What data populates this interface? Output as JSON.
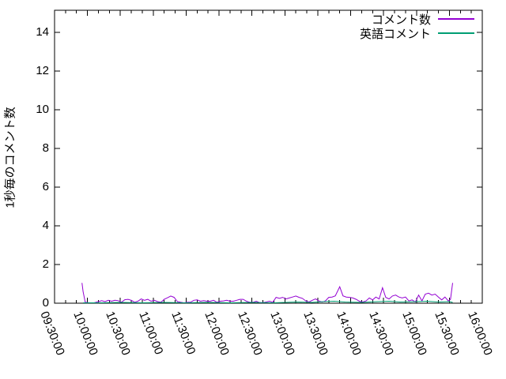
{
  "chart_data": {
    "type": "line",
    "title": "",
    "ylabel": "1秒毎のコメント数",
    "xlabel": "",
    "ylim": [
      0,
      15.14
    ],
    "yticks": [
      0,
      2,
      4,
      6,
      8,
      10,
      12,
      14
    ],
    "xticks": [
      "09:30:00",
      "10:00:00",
      "10:30:00",
      "11:00:00",
      "11:30:00",
      "12:00:00",
      "12:30:00",
      "13:00:00",
      "13:30:00",
      "14:00:00",
      "14:30:00",
      "15:00:00",
      "15:30:00",
      "16:00:00"
    ],
    "x_minor_tick_minutes": 10,
    "grid": false,
    "legend_position": "top-right-inside",
    "axis_color": "#000000",
    "background_color": "#ffffff",
    "series": [
      {
        "name": "コメント数",
        "color": "#9400d3",
        "points": [
          [
            "09:55",
            1.05
          ],
          [
            "09:56",
            0.6
          ],
          [
            "09:58",
            0.05
          ],
          [
            "10:02",
            0.02
          ],
          [
            "10:06",
            0.02
          ],
          [
            "10:10",
            0.08
          ],
          [
            "10:13",
            0.13
          ],
          [
            "10:16",
            0.08
          ],
          [
            "10:19",
            0.15
          ],
          [
            "10:22",
            0.1
          ],
          [
            "10:25",
            0.15
          ],
          [
            "10:28",
            0.13
          ],
          [
            "10:31",
            0.05
          ],
          [
            "10:34",
            0.18
          ],
          [
            "10:37",
            0.2
          ],
          [
            "10:40",
            0.15
          ],
          [
            "10:43",
            0.05
          ],
          [
            "10:46",
            0.1
          ],
          [
            "10:49",
            0.22
          ],
          [
            "10:52",
            0.15
          ],
          [
            "10:55",
            0.2
          ],
          [
            "10:58",
            0.1
          ],
          [
            "11:01",
            0.15
          ],
          [
            "11:04",
            0.08
          ],
          [
            "11:07",
            0.05
          ],
          [
            "11:10",
            0.2
          ],
          [
            "11:13",
            0.28
          ],
          [
            "11:16",
            0.37
          ],
          [
            "11:19",
            0.3
          ],
          [
            "11:22",
            0.08
          ],
          [
            "11:25",
            0.05
          ],
          [
            "11:28",
            0.02
          ],
          [
            "11:31",
            0.05
          ],
          [
            "11:34",
            0.05
          ],
          [
            "11:37",
            0.15
          ],
          [
            "11:40",
            0.17
          ],
          [
            "11:43",
            0.1
          ],
          [
            "11:46",
            0.13
          ],
          [
            "11:49",
            0.1
          ],
          [
            "11:52",
            0.1
          ],
          [
            "11:55",
            0.15
          ],
          [
            "11:58",
            0.05
          ],
          [
            "12:01",
            0.1
          ],
          [
            "12:04",
            0.12
          ],
          [
            "12:07",
            0.15
          ],
          [
            "12:10",
            0.1
          ],
          [
            "12:13",
            0.1
          ],
          [
            "12:16",
            0.15
          ],
          [
            "12:19",
            0.2
          ],
          [
            "12:22",
            0.2
          ],
          [
            "12:25",
            0.1
          ],
          [
            "12:28",
            0.05
          ],
          [
            "12:31",
            0.05
          ],
          [
            "12:34",
            0.1
          ],
          [
            "12:37",
            0.03
          ],
          [
            "12:40",
            0.03
          ],
          [
            "12:43",
            0.06
          ],
          [
            "12:46",
            0.1
          ],
          [
            "12:49",
            0.05
          ],
          [
            "12:52",
            0.3
          ],
          [
            "12:55",
            0.25
          ],
          [
            "12:58",
            0.3
          ],
          [
            "13:01",
            0.22
          ],
          [
            "13:04",
            0.27
          ],
          [
            "13:07",
            0.32
          ],
          [
            "13:10",
            0.37
          ],
          [
            "13:13",
            0.3
          ],
          [
            "13:16",
            0.25
          ],
          [
            "13:19",
            0.12
          ],
          [
            "13:22",
            0.06
          ],
          [
            "13:25",
            0.15
          ],
          [
            "13:28",
            0.22
          ],
          [
            "13:31",
            0.12
          ],
          [
            "13:34",
            0.06
          ],
          [
            "13:37",
            0.12
          ],
          [
            "13:40",
            0.3
          ],
          [
            "13:43",
            0.32
          ],
          [
            "13:46",
            0.38
          ],
          [
            "13:50",
            0.85
          ],
          [
            "13:53",
            0.38
          ],
          [
            "13:56",
            0.32
          ],
          [
            "13:59",
            0.3
          ],
          [
            "14:02",
            0.27
          ],
          [
            "14:05",
            0.2
          ],
          [
            "14:08",
            0.1
          ],
          [
            "14:11",
            0.06
          ],
          [
            "14:14",
            0.12
          ],
          [
            "14:17",
            0.27
          ],
          [
            "14:20",
            0.17
          ],
          [
            "14:23",
            0.32
          ],
          [
            "14:26",
            0.22
          ],
          [
            "14:29",
            0.8
          ],
          [
            "14:32",
            0.3
          ],
          [
            "14:35",
            0.22
          ],
          [
            "14:38",
            0.37
          ],
          [
            "14:41",
            0.42
          ],
          [
            "14:44",
            0.32
          ],
          [
            "14:47",
            0.27
          ],
          [
            "14:50",
            0.32
          ],
          [
            "14:53",
            0.12
          ],
          [
            "14:56",
            0.17
          ],
          [
            "14:59",
            0.06
          ],
          [
            "15:02",
            0.42
          ],
          [
            "15:05",
            0.12
          ],
          [
            "15:08",
            0.47
          ],
          [
            "15:11",
            0.52
          ],
          [
            "15:14",
            0.42
          ],
          [
            "15:17",
            0.47
          ],
          [
            "15:20",
            0.32
          ],
          [
            "15:23",
            0.17
          ],
          [
            "15:26",
            0.32
          ],
          [
            "15:29",
            0.12
          ],
          [
            "15:31",
            0.2
          ],
          [
            "15:33",
            1.05
          ]
        ]
      },
      {
        "name": "英語コメント",
        "color": "#009e73",
        "points": [
          [
            "09:56",
            0.02
          ],
          [
            "10:10",
            0.02
          ],
          [
            "10:30",
            0.04
          ],
          [
            "10:50",
            0.02
          ],
          [
            "11:10",
            0.04
          ],
          [
            "11:30",
            0.02
          ],
          [
            "11:50",
            0.04
          ],
          [
            "12:10",
            0.02
          ],
          [
            "12:30",
            0.04
          ],
          [
            "12:50",
            0.02
          ],
          [
            "13:10",
            0.06
          ],
          [
            "13:25",
            0.04
          ],
          [
            "13:35",
            0.08
          ],
          [
            "13:45",
            0.1
          ],
          [
            "13:55",
            0.06
          ],
          [
            "14:10",
            0.04
          ],
          [
            "14:25",
            0.08
          ],
          [
            "14:35",
            0.1
          ],
          [
            "14:45",
            0.06
          ],
          [
            "15:00",
            0.08
          ],
          [
            "15:10",
            0.1
          ],
          [
            "15:20",
            0.06
          ],
          [
            "15:30",
            0.08
          ],
          [
            "15:33",
            0.04
          ]
        ]
      }
    ]
  }
}
